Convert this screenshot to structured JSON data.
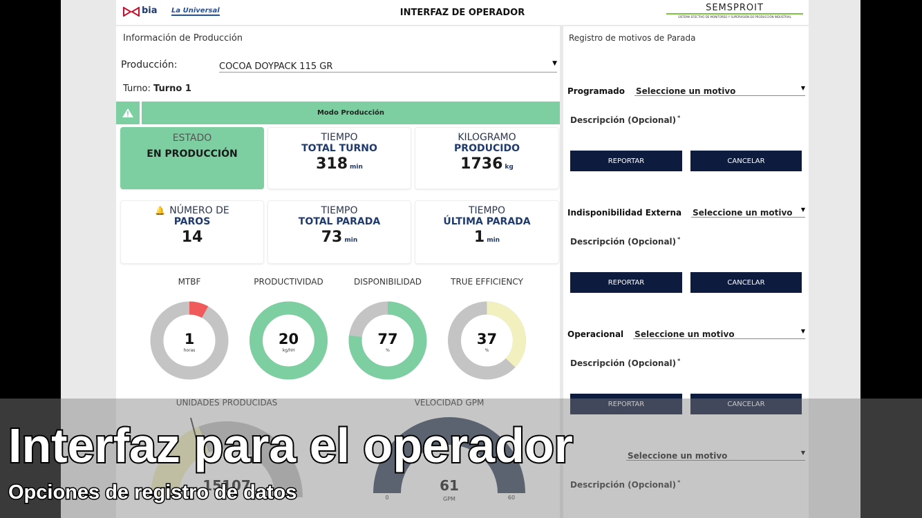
{
  "header": {
    "logos": [
      "bia",
      "La Universal"
    ],
    "title": "INTERFAZ DE OPERADOR",
    "brand": "SEMSPROIT",
    "brand_tagline": "SISTEMA EFECTIVO DE MONITOREO Y SUPERVISIÓN DE PRODUCCIÓN INDUSTRIAL"
  },
  "production": {
    "title": "Información de Producción",
    "label": "Producción:",
    "selected": "COCOA DOYPACK 115 GR",
    "shift_label": "Turno:",
    "shift": "Turno 1",
    "mode": "Modo Producción"
  },
  "cards": [
    {
      "label": "ESTADO",
      "title": "EN PRODUCCIÓN"
    },
    {
      "label": "TIEMPO",
      "title": "TOTAL TURNO",
      "value": 318,
      "unit": "min"
    },
    {
      "label": "KILOGRAMO",
      "title": "PRODUCIDO",
      "value": 1736,
      "unit": "kg"
    },
    {
      "label": "NÚMERO DE",
      "title": "PAROS",
      "value": 14
    },
    {
      "label": "TIEMPO",
      "title": "TOTAL PARADA",
      "value": 73,
      "unit": "min"
    },
    {
      "label": "TIEMPO",
      "title": "ÚLTIMA PARADA",
      "value": 1,
      "unit": "min"
    }
  ],
  "indicators": [
    {
      "label": "MTBF",
      "value": 1,
      "unit": "horas"
    },
    {
      "label": "PRODUCTIVIDAD",
      "value": 20,
      "unit": "kg/hH"
    },
    {
      "label": "DISPONIBILIDAD",
      "value": 77,
      "unit": "%"
    },
    {
      "label": "TRUE EFFICIENCY",
      "value": 37,
      "unit": "%"
    }
  ],
  "gauges": [
    {
      "label": "UNIDADES PRODUCIDAS",
      "value": 15107
    },
    {
      "label": "VELOCIDAD GPM",
      "value": 61,
      "unit": "GPM",
      "min": 0,
      "max": 60
    }
  ],
  "stops": {
    "title": "Registro de motivos de Parada",
    "sections": [
      {
        "label": "Programado",
        "placeholder": "Seleccione un motivo",
        "description": "Descripción (Opcional)",
        "required": "*",
        "buttons": [
          "REPORTAR",
          "CANCELAR"
        ]
      },
      {
        "label": "Indisponibilidad Externa",
        "placeholder": "Seleccione un motivo",
        "description": "Descripción (Opcional)",
        "required": "*",
        "buttons": [
          "REPORTAR",
          "CANCELAR"
        ]
      },
      {
        "label": "Operacional",
        "placeholder": "Seleccione un motivo",
        "description": "Descripción (Opcional)",
        "required": "*",
        "buttons": [
          "REPORTAR",
          "CANCELAR"
        ]
      },
      {
        "placeholder": "Seleccione un motivo",
        "description": "Descripción (Opcional)",
        "required": "*",
        "buttons": []
      }
    ]
  },
  "overlay": {
    "title": "Interfaz para el operador",
    "subtitle": "Opciones de registro de datos"
  }
}
